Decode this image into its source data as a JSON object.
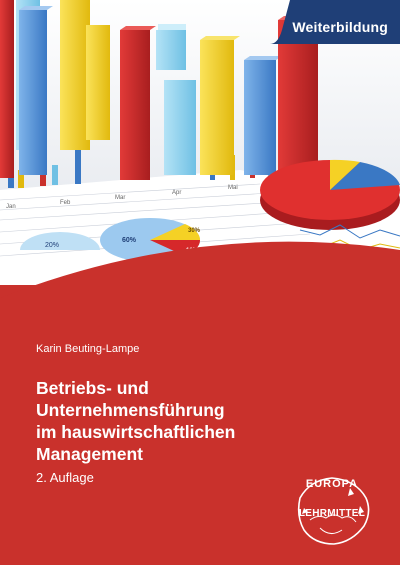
{
  "banner": {
    "label": "Weiterbildung",
    "color": "#1f3f77"
  },
  "author": "Karin Beuting-Lampe",
  "title_lines": [
    "Betriebs- und",
    "Unternehmensführung",
    "im hauswirtschaftlichen",
    "Management"
  ],
  "edition": "2. Auflage",
  "publisher": {
    "top": "EUROPA",
    "bottom": "LEHRMITTEL"
  },
  "photo": {
    "pie_labels": [
      "60%",
      "30%",
      "10%"
    ],
    "small_label": "20%",
    "month_labels": [
      "Jan",
      "Feb",
      "Mar",
      "Apr",
      "Mai"
    ]
  },
  "colors": {
    "cover_red": "#c9312c",
    "banner_blue": "#1f3f77"
  }
}
